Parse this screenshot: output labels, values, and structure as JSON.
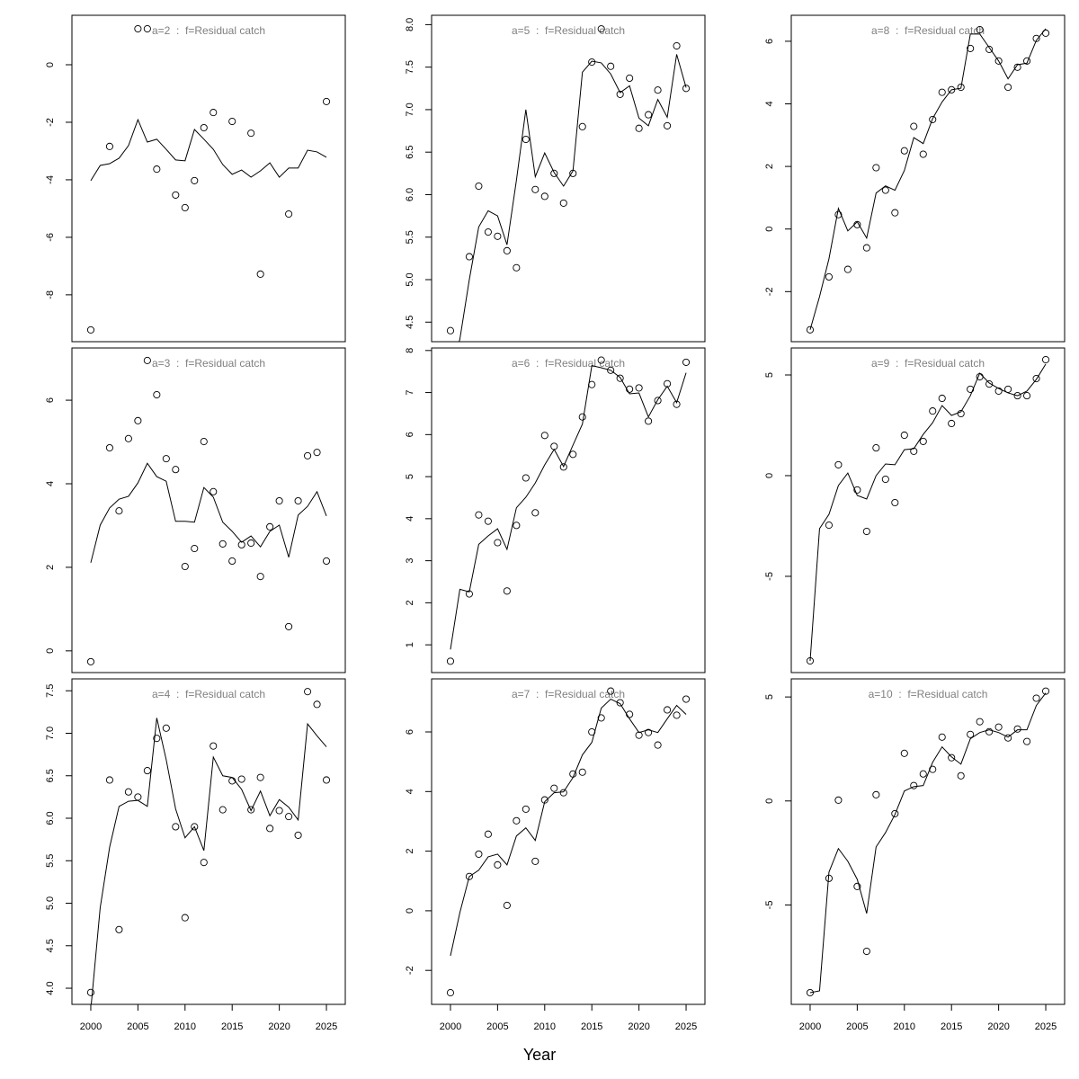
{
  "x_label": "Year",
  "chart_data": [
    {
      "type": "line",
      "title": "a=2  :  f=Residual catch",
      "x": [
        2000,
        2001,
        2002,
        2003,
        2004,
        2005,
        2006,
        2007,
        2008,
        2009,
        2010,
        2011,
        2012,
        2013,
        2014,
        2015,
        2016,
        2017,
        2018,
        2019,
        2020,
        2021,
        2022,
        2023,
        2024,
        2025
      ],
      "series": [
        {
          "style": "points",
          "color": "#000000",
          "values": [
            -9.22,
            null,
            -2.84,
            null,
            null,
            1.25,
            1.25,
            -3.63,
            null,
            -4.53,
            -4.97,
            -4.03,
            -2.19,
            -1.66,
            null,
            -1.97,
            null,
            -2.38,
            -7.28,
            null,
            null,
            -5.19,
            null,
            null,
            null,
            -1.28
          ]
        },
        {
          "style": "line",
          "color": "#000000",
          "values": [
            -4.03,
            -3.5,
            -3.44,
            -3.25,
            -2.81,
            -1.91,
            -2.69,
            -2.59,
            -2.94,
            -3.31,
            -3.34,
            -2.25,
            -2.59,
            -2.94,
            -3.47,
            -3.81,
            -3.66,
            -3.91,
            -3.69,
            -3.41,
            -3.91,
            -3.59,
            -3.59,
            -2.97,
            -3.03,
            -3.22
          ]
        }
      ],
      "xlim": [
        1998,
        2027
      ],
      "ylim": [
        -9.63,
        1.72
      ],
      "yticks": [
        -8,
        -6,
        -4,
        -2,
        0
      ]
    },
    {
      "type": "line",
      "title": "a=3  :  f=Residual catch",
      "x": [
        2000,
        2001,
        2002,
        2003,
        2004,
        2005,
        2006,
        2007,
        2008,
        2009,
        2010,
        2011,
        2012,
        2013,
        2014,
        2015,
        2016,
        2017,
        2018,
        2019,
        2020,
        2021,
        2022,
        2023,
        2024,
        2025
      ],
      "series": [
        {
          "style": "points",
          "color": "#000000",
          "values": [
            -0.26,
            null,
            4.86,
            3.35,
            5.08,
            5.51,
            6.95,
            6.13,
            4.6,
            4.34,
            2.02,
            2.45,
            5.01,
            3.81,
            2.56,
            2.15,
            2.54,
            2.58,
            1.78,
            2.97,
            3.59,
            0.58,
            3.59,
            4.67,
            4.75,
            2.15
          ]
        },
        {
          "style": "line",
          "color": "#000000",
          "values": [
            2.11,
            3.01,
            3.42,
            3.63,
            3.7,
            4.02,
            4.49,
            4.17,
            4.06,
            3.1,
            3.1,
            3.08,
            3.91,
            3.68,
            3.08,
            2.86,
            2.6,
            2.75,
            2.49,
            2.86,
            3.01,
            2.24,
            3.25,
            3.46,
            3.81,
            3.23
          ]
        }
      ],
      "xlim": [
        1998,
        2027
      ],
      "ylim": [
        -0.52,
        7.25
      ],
      "yticks": [
        0,
        2,
        4,
        6
      ]
    },
    {
      "type": "line",
      "title": "a=4  :  f=Residual catch",
      "x": [
        2000,
        2001,
        2002,
        2003,
        2004,
        2005,
        2006,
        2007,
        2008,
        2009,
        2010,
        2011,
        2012,
        2013,
        2014,
        2015,
        2016,
        2017,
        2018,
        2019,
        2020,
        2021,
        2022,
        2023,
        2024,
        2025
      ],
      "series": [
        {
          "style": "points",
          "color": "#000000",
          "values": [
            3.95,
            null,
            6.45,
            4.69,
            6.31,
            6.25,
            6.56,
            6.94,
            7.06,
            5.9,
            4.83,
            5.9,
            5.48,
            6.85,
            6.1,
            6.44,
            6.46,
            6.1,
            6.48,
            5.88,
            6.09,
            6.02,
            5.8,
            7.49,
            7.34,
            6.45
          ]
        },
        {
          "style": "line",
          "color": "#000000",
          "values": [
            3.75,
            4.95,
            5.66,
            6.14,
            6.2,
            6.21,
            6.14,
            7.18,
            6.69,
            6.11,
            5.77,
            5.9,
            5.62,
            6.72,
            6.5,
            6.48,
            6.34,
            6.09,
            6.32,
            6.03,
            6.22,
            6.13,
            5.98,
            7.11,
            6.97,
            6.84
          ]
        }
      ],
      "xlim": [
        1998,
        2027
      ],
      "ylim": [
        3.81,
        7.64
      ],
      "yticks": [
        {
          "value": 4,
          "label": "4.0"
        },
        4.5,
        {
          "value": 5,
          "label": "5.0"
        },
        5.5,
        {
          "value": 6,
          "label": "6.0"
        },
        6.5,
        {
          "value": 7,
          "label": "7.0"
        },
        7.5
      ],
      "xticks": [
        2000,
        2005,
        2010,
        2015,
        2020,
        2025
      ]
    },
    {
      "type": "line",
      "title": "a=5  :  f=Residual catch",
      "x": [
        2000,
        2001,
        2002,
        2003,
        2004,
        2005,
        2006,
        2007,
        2008,
        2009,
        2010,
        2011,
        2012,
        2013,
        2014,
        2015,
        2016,
        2017,
        2018,
        2019,
        2020,
        2021,
        2022,
        2023,
        2024,
        2025
      ],
      "series": [
        {
          "style": "points",
          "color": "#000000",
          "values": [
            4.4,
            null,
            5.27,
            6.1,
            5.56,
            5.51,
            5.34,
            5.14,
            6.65,
            6.06,
            5.98,
            6.25,
            5.9,
            6.25,
            6.8,
            7.56,
            7.95,
            7.51,
            7.18,
            7.37,
            6.78,
            6.94,
            7.23,
            6.81,
            7.75,
            7.25
          ]
        },
        {
          "style": "line",
          "color": "#000000",
          "values": [
            3.9,
            4.3,
            5.0,
            5.62,
            5.81,
            5.75,
            5.41,
            6.17,
            7.0,
            6.21,
            6.49,
            6.26,
            6.1,
            6.28,
            7.44,
            7.57,
            7.55,
            7.42,
            7.2,
            7.28,
            6.9,
            6.81,
            7.12,
            6.91,
            7.65,
            7.26
          ]
        }
      ],
      "xlim": [
        1998,
        2027
      ],
      "ylim": [
        4.27,
        8.11
      ],
      "yticks": [
        4.5,
        {
          "value": 5,
          "label": "5.0"
        },
        5.5,
        {
          "value": 6,
          "label": "6.0"
        },
        6.5,
        {
          "value": 7,
          "label": "7.0"
        },
        7.5,
        {
          "value": 8,
          "label": "8.0"
        }
      ]
    },
    {
      "type": "line",
      "title": "a=6  :  f=Residual catch",
      "x": [
        2000,
        2001,
        2002,
        2003,
        2004,
        2005,
        2006,
        2007,
        2008,
        2009,
        2010,
        2011,
        2012,
        2013,
        2014,
        2015,
        2016,
        2017,
        2018,
        2019,
        2020,
        2021,
        2022,
        2023,
        2024,
        2025
      ],
      "series": [
        {
          "style": "points",
          "color": "#000000",
          "values": [
            0.61,
            null,
            2.21,
            4.09,
            3.94,
            3.43,
            2.28,
            3.84,
            4.97,
            4.14,
            5.98,
            5.72,
            5.23,
            5.53,
            6.42,
            7.19,
            7.77,
            7.53,
            7.34,
            7.08,
            7.11,
            6.32,
            6.81,
            7.21,
            6.72,
            7.72
          ]
        },
        {
          "style": "line",
          "color": "#000000",
          "values": [
            0.89,
            2.32,
            2.26,
            3.39,
            3.59,
            3.76,
            3.27,
            4.26,
            4.51,
            4.85,
            5.28,
            5.65,
            5.24,
            5.75,
            6.25,
            7.64,
            7.59,
            7.53,
            7.36,
            6.97,
            6.99,
            6.42,
            6.83,
            7.15,
            6.76,
            7.47
          ]
        }
      ],
      "xlim": [
        1998,
        2027
      ],
      "ylim": [
        0.34,
        8.06
      ],
      "yticks": [
        1,
        2,
        3,
        4,
        5,
        6,
        7,
        8
      ]
    },
    {
      "type": "line",
      "title": "a=7  :  f=Residual catch",
      "x": [
        2000,
        2001,
        2002,
        2003,
        2004,
        2005,
        2006,
        2007,
        2008,
        2009,
        2010,
        2011,
        2012,
        2013,
        2014,
        2015,
        2016,
        2017,
        2018,
        2019,
        2020,
        2021,
        2022,
        2023,
        2024,
        2025
      ],
      "series": [
        {
          "style": "points",
          "color": "#000000",
          "values": [
            -2.75,
            null,
            1.15,
            1.9,
            2.57,
            1.54,
            0.18,
            3.02,
            3.41,
            1.66,
            3.72,
            4.11,
            3.96,
            4.59,
            4.65,
            6.0,
            6.47,
            7.37,
            6.98,
            6.59,
            5.89,
            5.98,
            5.56,
            6.74,
            6.56,
            7.1
          ]
        },
        {
          "style": "line",
          "color": "#000000",
          "values": [
            -1.51,
            -0.06,
            1.15,
            1.36,
            1.81,
            1.9,
            1.54,
            2.51,
            2.78,
            2.36,
            3.66,
            3.96,
            3.99,
            4.47,
            5.23,
            5.65,
            6.8,
            7.1,
            6.95,
            6.44,
            5.98,
            6.07,
            5.98,
            6.44,
            6.89,
            6.59
          ]
        }
      ],
      "xlim": [
        1998,
        2027
      ],
      "ylim": [
        -3.14,
        7.78
      ],
      "yticks": [
        -2,
        0,
        2,
        4,
        6
      ],
      "xticks": [
        2000,
        2005,
        2010,
        2015,
        2020,
        2025
      ]
    },
    {
      "type": "line",
      "title": "a=8  :  f=Residual catch",
      "x": [
        2000,
        2001,
        2002,
        2003,
        2004,
        2005,
        2006,
        2007,
        2008,
        2009,
        2010,
        2011,
        2012,
        2013,
        2014,
        2015,
        2016,
        2017,
        2018,
        2019,
        2020,
        2021,
        2022,
        2023,
        2024,
        2025
      ],
      "series": [
        {
          "style": "points",
          "color": "#000000",
          "values": [
            -3.22,
            null,
            -1.53,
            0.46,
            -1.29,
            0.14,
            -0.6,
            1.96,
            1.24,
            0.52,
            2.5,
            3.28,
            2.39,
            3.5,
            4.37,
            4.45,
            4.53,
            5.77,
            6.37,
            5.74,
            5.37,
            4.53,
            5.17,
            5.37,
            6.09,
            6.26
          ]
        },
        {
          "style": "line",
          "color": "#000000",
          "values": [
            -3.22,
            -2.16,
            -0.95,
            0.66,
            -0.06,
            0.23,
            -0.29,
            1.15,
            1.38,
            1.24,
            1.87,
            2.92,
            2.73,
            3.53,
            4.06,
            4.45,
            4.5,
            6.23,
            6.23,
            5.8,
            5.37,
            4.8,
            5.25,
            5.3,
            6.03,
            6.4
          ]
        }
      ],
      "xlim": [
        1998,
        2027
      ],
      "ylim": [
        -3.6,
        6.83
      ],
      "yticks": [
        -2,
        0,
        2,
        4,
        6
      ]
    },
    {
      "type": "line",
      "title": "a=9  :  f=Residual catch",
      "x": [
        2000,
        2001,
        2002,
        2003,
        2004,
        2005,
        2006,
        2007,
        2008,
        2009,
        2010,
        2011,
        2012,
        2013,
        2014,
        2015,
        2016,
        2017,
        2018,
        2019,
        2020,
        2021,
        2022,
        2023,
        2024,
        2025
      ],
      "series": [
        {
          "style": "points",
          "color": "#000000",
          "values": [
            -9.2,
            null,
            -2.46,
            0.54,
            null,
            -0.71,
            -2.77,
            1.38,
            -0.18,
            -1.34,
            2.01,
            1.21,
            1.7,
            3.21,
            3.84,
            2.59,
            3.08,
            4.29,
            4.91,
            4.55,
            4.2,
            4.29,
            3.97,
            3.97,
            4.82,
            5.76
          ]
        },
        {
          "style": "line",
          "color": "#000000",
          "values": [
            -9.2,
            -2.63,
            -1.92,
            -0.49,
            0.13,
            -0.98,
            -1.16,
            0,
            0.58,
            0.54,
            1.29,
            1.34,
            2.05,
            2.63,
            3.48,
            2.99,
            3.17,
            3.97,
            5.09,
            4.6,
            4.33,
            4.11,
            3.97,
            4.2,
            4.78,
            5.54
          ]
        }
      ],
      "xlim": [
        1998,
        2027
      ],
      "ylim": [
        -9.78,
        6.34
      ],
      "yticks": [
        -5,
        0,
        5
      ]
    },
    {
      "type": "line",
      "title": "a=10  :  f=Residual catch",
      "x": [
        2000,
        2001,
        2002,
        2003,
        2004,
        2005,
        2006,
        2007,
        2008,
        2009,
        2010,
        2011,
        2012,
        2013,
        2014,
        2015,
        2016,
        2017,
        2018,
        2019,
        2020,
        2021,
        2022,
        2023,
        2024,
        2025
      ],
      "series": [
        {
          "style": "points",
          "color": "#000000",
          "values": [
            -9.22,
            null,
            -3.72,
            0.04,
            null,
            -4.11,
            -7.23,
            0.3,
            null,
            -0.61,
            2.29,
            0.74,
            1.3,
            1.52,
            3.07,
            2.08,
            1.21,
            3.2,
            3.81,
            3.33,
            3.55,
            3.03,
            3.46,
            2.86,
            4.94,
            5.28
          ]
        },
        {
          "style": "line",
          "color": "#000000",
          "values": [
            -9.22,
            -9.13,
            -3.42,
            -2.29,
            -2.9,
            -3.77,
            -5.41,
            -2.21,
            -1.52,
            -0.65,
            0.48,
            0.69,
            0.74,
            1.86,
            2.6,
            2.12,
            1.77,
            2.99,
            3.29,
            3.42,
            3.29,
            3.07,
            3.42,
            3.42,
            4.59,
            5.19
          ]
        }
      ],
      "xlim": [
        1998,
        2027
      ],
      "ylim": [
        -9.78,
        5.87
      ],
      "yticks": [
        -5,
        0,
        5
      ],
      "xticks": [
        2000,
        2005,
        2010,
        2015,
        2020,
        2025
      ]
    }
  ]
}
